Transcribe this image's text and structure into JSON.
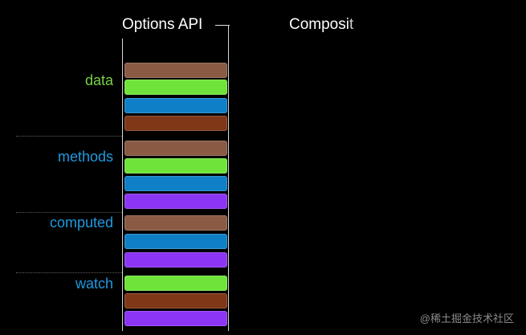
{
  "headers": {
    "options_api": "Options API",
    "composition": "Composit"
  },
  "groups": [
    {
      "label": "data",
      "label_color": "#78d248",
      "bars": [
        "brown",
        "green",
        "blue",
        "rust"
      ]
    },
    {
      "label": "methods",
      "label_color": "#1f9ae0",
      "bars": [
        "brown",
        "green",
        "blue",
        "purple"
      ]
    },
    {
      "label": "computed",
      "label_color": "#1f9ae0",
      "bars": [
        "brown",
        "blue",
        "purple"
      ]
    },
    {
      "label": "watch",
      "label_color": "#1f9ae0",
      "bars": [
        "green",
        "rust",
        "purple"
      ]
    }
  ],
  "bar_colors": {
    "brown": "#8a5a45",
    "green": "#6fe33a",
    "blue": "#0f7fc7",
    "rust": "#7f3718",
    "purple": "#8c35f5"
  },
  "watermark": "@稀土掘金技术社区"
}
